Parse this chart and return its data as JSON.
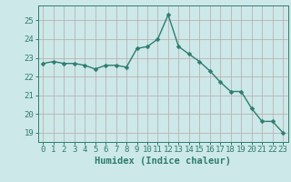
{
  "x": [
    0,
    1,
    2,
    3,
    4,
    5,
    6,
    7,
    8,
    9,
    10,
    11,
    12,
    13,
    14,
    15,
    16,
    17,
    18,
    19,
    20,
    21,
    22,
    23
  ],
  "y": [
    22.7,
    22.8,
    22.7,
    22.7,
    22.6,
    22.4,
    22.6,
    22.6,
    22.5,
    23.5,
    23.6,
    24.0,
    25.3,
    23.6,
    23.2,
    22.8,
    22.3,
    21.7,
    21.2,
    21.2,
    20.3,
    19.6,
    19.6,
    19.0
  ],
  "line_color": "#2e7d6e",
  "marker": "D",
  "marker_size": 2.5,
  "line_width": 1.0,
  "background_color": "#cde8e8",
  "grid_color": "#b8a8a8",
  "xlabel": "Humidex (Indice chaleur)",
  "xlim": [
    -0.5,
    23.5
  ],
  "ylim": [
    18.5,
    25.8
  ],
  "yticks": [
    19,
    20,
    21,
    22,
    23,
    24,
    25
  ],
  "xticks": [
    0,
    1,
    2,
    3,
    4,
    5,
    6,
    7,
    8,
    9,
    10,
    11,
    12,
    13,
    14,
    15,
    16,
    17,
    18,
    19,
    20,
    21,
    22,
    23
  ],
  "tick_color": "#2e7d6e",
  "label_fontsize": 6.5,
  "xlabel_fontsize": 7.5
}
